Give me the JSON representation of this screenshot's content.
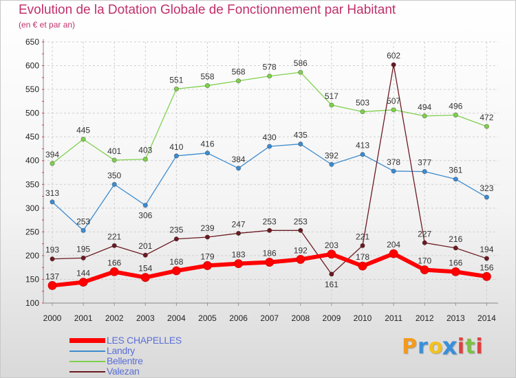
{
  "title": "Evolution de la Dotation Globale de Fonctionnement par Habitant",
  "subtitle": "(en € et par an)",
  "brand": {
    "letters": [
      "P",
      "r",
      "o",
      "x",
      "i",
      "t",
      "i"
    ],
    "colors": [
      "#f39a1e",
      "#3a8fd9",
      "#f3c01e",
      "#3a8fd9",
      "#e04040",
      "#7cc242",
      "#e04040"
    ]
  },
  "chart_data": {
    "type": "line",
    "x": [
      "2000",
      "2001",
      "2002",
      "2003",
      "2004",
      "2005",
      "2006",
      "2007",
      "2008",
      "2009",
      "2010",
      "2011",
      "2012",
      "2013",
      "2014"
    ],
    "yticks": [
      "100",
      "150",
      "200",
      "250",
      "300",
      "350",
      "400",
      "450",
      "500",
      "550",
      "600",
      "650"
    ],
    "ylim": [
      100,
      650
    ],
    "grid": true,
    "legend_position": "bottom-left",
    "series": [
      {
        "name": "LES CHAPELLES",
        "color": "#ff0000",
        "emphasis": true,
        "values": [
          137,
          144,
          166,
          154,
          168,
          179,
          183,
          186,
          192,
          203,
          178,
          204,
          170,
          166,
          156
        ]
      },
      {
        "name": "Landry",
        "color": "#3d8cd0",
        "values": [
          313,
          253,
          350,
          306,
          410,
          416,
          384,
          430,
          435,
          392,
          413,
          378,
          377,
          361,
          323
        ]
      },
      {
        "name": "Bellentre",
        "color": "#7fd04c",
        "values": [
          394,
          445,
          401,
          403,
          551,
          558,
          568,
          578,
          586,
          517,
          503,
          507,
          494,
          496,
          472
        ]
      },
      {
        "name": "Valezan",
        "color": "#6b1a22",
        "values": [
          193,
          195,
          221,
          201,
          235,
          239,
          247,
          253,
          253,
          161,
          221,
          602,
          227,
          216,
          194
        ]
      }
    ],
    "data_label_offsets": {
      "LES CHAPELLES": [
        -1,
        -1,
        -1,
        -1,
        -1,
        -1,
        -1,
        -1,
        -1,
        -1,
        -1,
        -1,
        -1,
        -1,
        -1
      ],
      "Landry": [
        -1,
        -1,
        -1,
        1,
        -1,
        -1,
        -1,
        -1,
        -1,
        -1,
        -1,
        -1,
        -1,
        -1,
        -1
      ],
      "Bellentre": [
        -1,
        -1,
        -1,
        -1,
        -1,
        -1,
        -1,
        -1,
        -1,
        -1,
        -1,
        -1,
        -1,
        -1,
        -1
      ],
      "Valezan": [
        -1,
        -1,
        -1,
        -1,
        -1,
        -1,
        -1,
        -1,
        -1,
        1,
        -1,
        -1,
        -1,
        -1,
        -1
      ]
    }
  }
}
